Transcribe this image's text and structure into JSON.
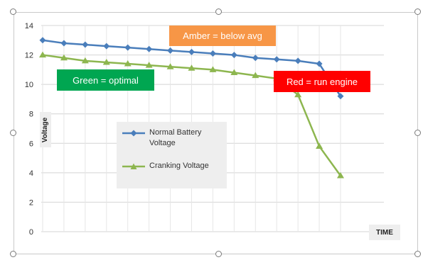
{
  "chart_data": {
    "type": "line",
    "x": [
      1,
      2,
      3,
      4,
      5,
      6,
      7,
      8,
      9,
      10,
      11,
      12,
      13,
      14,
      15
    ],
    "ylim": [
      0,
      14
    ],
    "yticks": [
      "0",
      "2",
      "4",
      "6",
      "8",
      "10",
      "12",
      "14"
    ],
    "ylabel": "Voltage",
    "xlabel": "TIME",
    "grid": true,
    "series": [
      {
        "name": "Normal Battery Voltage",
        "color": "#4a7ebb",
        "marker": "diamond",
        "values": [
          13.0,
          12.8,
          12.7,
          12.6,
          12.5,
          12.4,
          12.3,
          12.2,
          12.1,
          12.0,
          11.8,
          11.7,
          11.6,
          11.4,
          9.2
        ]
      },
      {
        "name": "Cranking Voltage",
        "color": "#8db64f",
        "marker": "triangle",
        "values": [
          12.0,
          11.8,
          11.6,
          11.5,
          11.4,
          11.3,
          11.2,
          11.1,
          11.0,
          10.8,
          10.6,
          10.4,
          9.3,
          5.8,
          3.8
        ]
      }
    ],
    "annotations": [
      {
        "text": "Amber = below avg",
        "color": "#f79646"
      },
      {
        "text": "Green = optimal",
        "color": "#00a651"
      },
      {
        "text": "Red = run engine",
        "color": "#ff0000"
      }
    ],
    "legend_position": "center-left"
  }
}
